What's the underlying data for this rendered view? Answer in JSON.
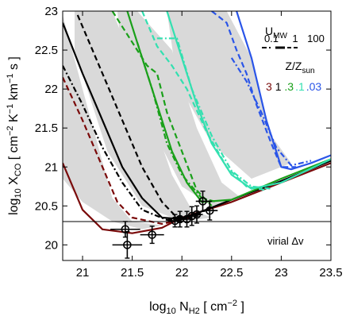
{
  "chart_data": {
    "type": "line",
    "xlabel": {
      "base": "log",
      "sub1": "10",
      "mid": " N",
      "sub2": "H2",
      "unit": " [ cm",
      "sup": "−2",
      "end": " ]"
    },
    "ylabel": {
      "base": "log",
      "sub1": "10",
      "mid": " X",
      "sub2": "CO",
      "unit": " [ cm",
      "sup1": "−2",
      "k": " K",
      "sup2": "−1",
      "km": " km",
      "sup3": "−1",
      "end": " s ]"
    },
    "xlim": [
      20.8,
      23.5
    ],
    "ylim": [
      19.8,
      23.0
    ],
    "xticks": [
      "21",
      "21.5",
      "22",
      "22.5",
      "23",
      "23.5"
    ],
    "yticks": [
      "20",
      "20.5",
      "21",
      "21.5",
      "22",
      "22.5",
      "23"
    ],
    "hline": {
      "y": 20.3
    },
    "annotation": {
      "text": "virial Δv"
    },
    "legend": {
      "umw_title": "U",
      "umw_sub": "MW",
      "umw_values": [
        "0.1",
        "1",
        "100"
      ],
      "z_title": "Z/Z",
      "z_sub": "sun",
      "z_values": [
        "3",
        "1",
        ".3",
        ".1",
        ".03"
      ],
      "z_colors": [
        "#7a0a0a",
        "#000000",
        "#1aa01a",
        "#33e0b0",
        "#2a55e8"
      ]
    },
    "bands": [
      {
        "upper": [
          [
            20.8,
            22.95
          ],
          [
            21.0,
            22.0
          ],
          [
            21.3,
            20.6
          ],
          [
            21.5,
            20.3
          ],
          [
            21.8,
            20.25
          ]
        ],
        "lower": [
          [
            21.8,
            20.25
          ],
          [
            21.6,
            20.2
          ],
          [
            21.3,
            20.3
          ],
          [
            21.0,
            20.55
          ],
          [
            20.8,
            20.85
          ]
        ]
      },
      {
        "upper": [
          [
            21.3,
            23.0
          ],
          [
            21.55,
            22.2
          ],
          [
            21.9,
            20.9
          ],
          [
            22.1,
            20.45
          ],
          [
            22.3,
            20.35
          ]
        ],
        "lower": [
          [
            22.3,
            20.35
          ],
          [
            22.0,
            20.3
          ],
          [
            21.6,
            20.5
          ],
          [
            21.25,
            21.2
          ],
          [
            20.92,
            22.5
          ],
          [
            20.92,
            23.0
          ]
        ]
      },
      {
        "upper": [
          [
            21.55,
            23.0
          ],
          [
            21.9,
            22.5
          ],
          [
            22.15,
            21.5
          ],
          [
            22.4,
            20.8
          ],
          [
            22.6,
            20.6
          ]
        ],
        "lower": [
          [
            22.6,
            20.6
          ],
          [
            22.3,
            20.5
          ],
          [
            22.0,
            20.75
          ],
          [
            21.7,
            21.5
          ],
          [
            21.4,
            22.4
          ],
          [
            21.35,
            23.0
          ]
        ]
      },
      {
        "upper": [
          [
            22.45,
            23.0
          ],
          [
            22.7,
            22.4
          ],
          [
            22.9,
            21.4
          ],
          [
            23.1,
            21.05
          ]
        ],
        "lower": [
          [
            23.1,
            21.05
          ],
          [
            22.7,
            20.85
          ],
          [
            22.3,
            21.3
          ],
          [
            21.95,
            22.1
          ],
          [
            21.85,
            23.0
          ]
        ]
      }
    ],
    "series": [
      {
        "color": "#7a0a0a",
        "style": "solid",
        "points": [
          [
            20.8,
            21.05
          ],
          [
            21.0,
            20.45
          ],
          [
            21.2,
            20.2
          ],
          [
            21.5,
            20.15
          ],
          [
            21.8,
            20.22
          ],
          [
            22.0,
            20.35
          ],
          [
            22.5,
            20.55
          ],
          [
            23.0,
            20.8
          ],
          [
            23.5,
            21.05
          ]
        ]
      },
      {
        "color": "#7a0a0a",
        "style": "dashed",
        "points": [
          [
            20.8,
            22.15
          ],
          [
            21.0,
            21.6
          ],
          [
            21.2,
            21.0
          ],
          [
            21.35,
            20.55
          ],
          [
            21.5,
            20.35
          ],
          [
            21.8,
            20.27
          ],
          [
            22.1,
            20.35
          ]
        ]
      },
      {
        "color": "#000000",
        "style": "solid",
        "points": [
          [
            20.8,
            22.85
          ],
          [
            21.0,
            22.2
          ],
          [
            21.2,
            21.6
          ],
          [
            21.4,
            21.0
          ],
          [
            21.6,
            20.6
          ],
          [
            21.8,
            20.35
          ],
          [
            22.0,
            20.33
          ],
          [
            22.5,
            20.58
          ],
          [
            23.0,
            20.82
          ],
          [
            23.5,
            21.08
          ]
        ]
      },
      {
        "color": "#000000",
        "style": "dashed",
        "points": [
          [
            20.95,
            22.95
          ],
          [
            21.2,
            22.2
          ],
          [
            21.4,
            21.6
          ],
          [
            21.6,
            21.0
          ],
          [
            21.8,
            20.55
          ],
          [
            21.95,
            20.35
          ],
          [
            22.2,
            20.4
          ]
        ]
      },
      {
        "color": "#000000",
        "style": "dashdot",
        "points": [
          [
            20.8,
            22.3
          ],
          [
            21.0,
            21.8
          ],
          [
            21.2,
            21.25
          ],
          [
            21.4,
            20.8
          ],
          [
            21.6,
            20.45
          ],
          [
            21.85,
            20.32
          ],
          [
            22.1,
            20.35
          ]
        ]
      },
      {
        "color": "#1aa01a",
        "style": "solid",
        "points": [
          [
            21.45,
            23.0
          ],
          [
            21.6,
            22.4
          ],
          [
            21.75,
            21.8
          ],
          [
            21.9,
            21.2
          ],
          [
            22.05,
            20.8
          ],
          [
            22.2,
            20.55
          ],
          [
            22.5,
            20.58
          ],
          [
            23.0,
            20.85
          ],
          [
            23.5,
            21.1
          ]
        ]
      },
      {
        "color": "#1aa01a",
        "style": "dashed",
        "points": [
          [
            21.3,
            23.0
          ],
          [
            21.5,
            22.6
          ],
          [
            21.65,
            22.3
          ],
          [
            21.75,
            22.2
          ],
          [
            21.85,
            21.7
          ],
          [
            22.0,
            21.2
          ],
          [
            22.15,
            20.7
          ],
          [
            22.3,
            20.5
          ]
        ]
      },
      {
        "color": "#1aa01a",
        "style": "dashdot",
        "points": [
          [
            21.55,
            22.6
          ],
          [
            21.7,
            22.0
          ],
          [
            21.85,
            21.3
          ],
          [
            22.0,
            20.9
          ],
          [
            22.2,
            20.6
          ],
          [
            22.35,
            20.55
          ]
        ]
      },
      {
        "color": "#33e0b0",
        "style": "solid",
        "points": [
          [
            21.85,
            23.0
          ],
          [
            22.0,
            22.4
          ],
          [
            22.15,
            21.8
          ],
          [
            22.3,
            21.3
          ],
          [
            22.5,
            20.9
          ],
          [
            22.7,
            20.72
          ],
          [
            23.0,
            20.8
          ],
          [
            23.5,
            21.1
          ]
        ]
      },
      {
        "color": "#33e0b0",
        "style": "dashed",
        "points": [
          [
            21.6,
            23.0
          ],
          [
            21.75,
            22.55
          ],
          [
            21.9,
            22.3
          ],
          [
            22.05,
            22.0
          ],
          [
            22.25,
            21.45
          ],
          [
            22.45,
            21.0
          ],
          [
            22.65,
            20.75
          ],
          [
            22.85,
            20.7
          ]
        ]
      },
      {
        "color": "#33e0b0",
        "style": "dashdot",
        "points": [
          [
            21.75,
            22.65
          ],
          [
            21.95,
            22.65
          ],
          [
            22.1,
            22.0
          ],
          [
            22.3,
            21.4
          ],
          [
            22.5,
            20.95
          ],
          [
            22.7,
            20.75
          ],
          [
            22.9,
            20.72
          ]
        ]
      },
      {
        "color": "#2a55e8",
        "style": "solid",
        "points": [
          [
            22.55,
            23.0
          ],
          [
            22.7,
            22.4
          ],
          [
            22.85,
            21.6
          ],
          [
            23.0,
            21.0
          ],
          [
            23.1,
            20.97
          ],
          [
            23.3,
            21.05
          ],
          [
            23.5,
            21.15
          ]
        ]
      },
      {
        "color": "#2a55e8",
        "style": "dashed",
        "points": [
          [
            22.3,
            23.0
          ],
          [
            22.45,
            22.85
          ],
          [
            22.55,
            22.5
          ],
          [
            22.65,
            22.2
          ],
          [
            22.75,
            21.8
          ],
          [
            22.9,
            21.3
          ],
          [
            23.0,
            21.0
          ],
          [
            23.15,
            21.0
          ]
        ]
      },
      {
        "color": "#2a55e8",
        "style": "dashdot",
        "points": [
          [
            22.5,
            22.4
          ],
          [
            22.65,
            22.1
          ],
          [
            22.8,
            21.7
          ],
          [
            22.95,
            21.25
          ],
          [
            23.1,
            21.02
          ],
          [
            23.3,
            21.08
          ]
        ]
      }
    ],
    "observations": [
      {
        "x": 21.43,
        "y": 20.2,
        "xerr": 0.15,
        "yerr": 0.1
      },
      {
        "x": 21.45,
        "y": 20.0,
        "xerr": 0.15,
        "yerr": 0.17
      },
      {
        "x": 21.7,
        "y": 20.13,
        "xerr": 0.12,
        "yerr": 0.11
      },
      {
        "x": 21.93,
        "y": 20.31,
        "xerr": 0.07,
        "yerr": 0.08
      },
      {
        "x": 21.98,
        "y": 20.33,
        "xerr": 0.07,
        "yerr": 0.1
      },
      {
        "x": 22.05,
        "y": 20.33,
        "xerr": 0.07,
        "yerr": 0.1
      },
      {
        "x": 22.1,
        "y": 20.37,
        "xerr": 0.07,
        "yerr": 0.12
      },
      {
        "x": 22.15,
        "y": 20.39,
        "xerr": 0.06,
        "yerr": 0.11
      },
      {
        "x": 22.21,
        "y": 20.56,
        "xerr": 0.07,
        "yerr": 0.13
      },
      {
        "x": 22.28,
        "y": 20.44,
        "xerr": 0.08,
        "yerr": 0.12
      }
    ]
  }
}
